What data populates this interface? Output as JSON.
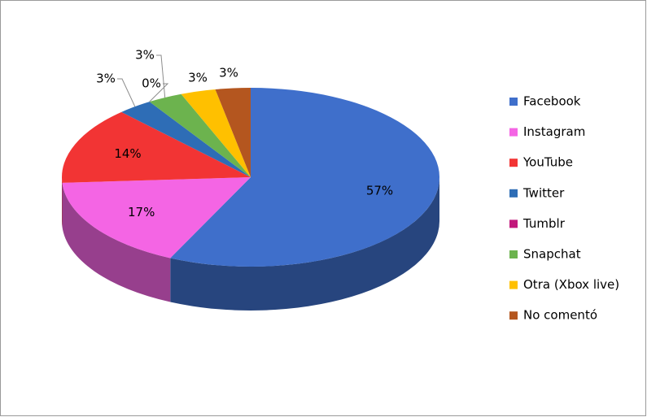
{
  "chart_data": {
    "type": "pie",
    "categories": [
      "Facebook",
      "Instagram",
      "YouTube",
      "Twitter",
      "Tumblr",
      "Snapchat",
      "Otra (Xbox live)",
      "No comentó"
    ],
    "values": [
      57,
      17,
      14,
      3,
      0,
      3,
      3,
      3
    ],
    "value_labels": [
      "57%",
      "17%",
      "14%",
      "3%",
      "0%",
      "3%",
      "3%",
      "3%"
    ],
    "colors": [
      "#3f6fcb",
      "#f465e4",
      "#f23434",
      "#2e6db6",
      "#c2187c",
      "#6cb34e",
      "#ffc000",
      "#b4561f"
    ],
    "legend": "right"
  }
}
